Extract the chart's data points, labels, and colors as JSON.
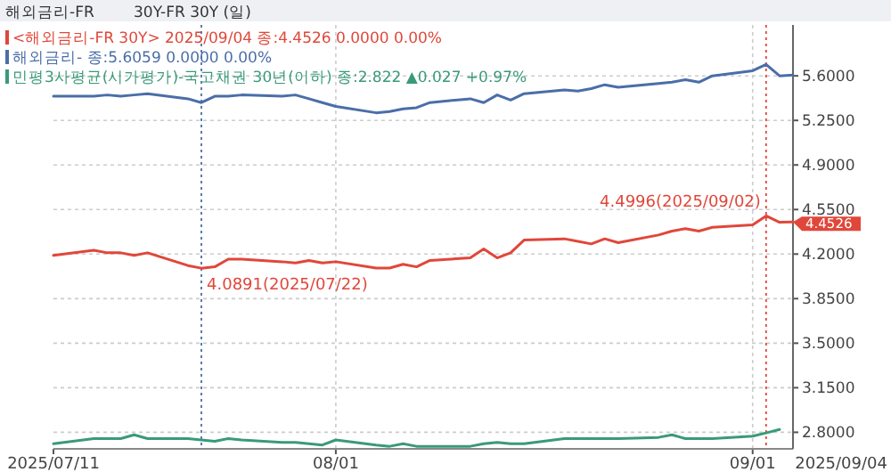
{
  "chart_data": {
    "type": "line",
    "title": "해외금리-FR",
    "subtitle": "30Y-FR 30Y (일)",
    "x": [
      "2025-07-11",
      "2025-07-14",
      "2025-07-15",
      "2025-07-16",
      "2025-07-17",
      "2025-07-18",
      "2025-07-21",
      "2025-07-22",
      "2025-07-23",
      "2025-07-24",
      "2025-07-25",
      "2025-07-28",
      "2025-07-29",
      "2025-07-30",
      "2025-07-31",
      "2025-08-01",
      "2025-08-04",
      "2025-08-05",
      "2025-08-06",
      "2025-08-07",
      "2025-08-08",
      "2025-08-11",
      "2025-08-12",
      "2025-08-13",
      "2025-08-14",
      "2025-08-15",
      "2025-08-18",
      "2025-08-19",
      "2025-08-20",
      "2025-08-21",
      "2025-08-22",
      "2025-08-25",
      "2025-08-26",
      "2025-08-27",
      "2025-08-28",
      "2025-08-29",
      "2025-09-01",
      "2025-09-02",
      "2025-09-03",
      "2025-09-04"
    ],
    "xlim": [
      "2025-07-11",
      "2025-09-04"
    ],
    "xticks": [
      {
        "value": "2025-07-11",
        "label": "2025/07/11"
      },
      {
        "value": "2025-08-01",
        "label": "08/01"
      },
      {
        "value": "2025-09-01",
        "label": "09/01"
      }
    ],
    "ylim": [
      2.67,
      6.0
    ],
    "yticks": [
      {
        "value": 2.8,
        "label": "2.8000"
      },
      {
        "value": 3.15,
        "label": "3.1500"
      },
      {
        "value": 3.5,
        "label": "3.5000"
      },
      {
        "value": 3.85,
        "label": "3.8500"
      },
      {
        "value": 4.2,
        "label": "4.2000"
      },
      {
        "value": 4.55,
        "label": "4.5500"
      },
      {
        "value": 4.9,
        "label": "4.9000"
      },
      {
        "value": 5.25,
        "label": "5.2500"
      },
      {
        "value": 5.6,
        "label": "5.6000"
      }
    ],
    "grid": true,
    "legend": "top left",
    "ref_lines": [
      {
        "axis": "x",
        "value": "2025-07-22",
        "color": "#4a6ea8",
        "line_style": "dotted"
      },
      {
        "axis": "x",
        "value": "2025-09-02",
        "color": "#e0473a",
        "line_style": "dotted"
      }
    ],
    "series": [
      {
        "name": "<해외금리-FR 30Y> 2025/09/04 종:4.4526  0.0000 0.00%",
        "color": "#e0473a",
        "values": [
          4.19,
          4.23,
          4.21,
          4.21,
          4.19,
          4.21,
          4.11,
          4.0891,
          4.1,
          4.16,
          4.16,
          4.14,
          4.13,
          4.15,
          4.13,
          4.14,
          4.09,
          4.09,
          4.12,
          4.1,
          4.15,
          4.17,
          4.24,
          4.17,
          4.21,
          4.31,
          4.32,
          4.3,
          4.28,
          4.32,
          4.29,
          4.35,
          4.38,
          4.4,
          4.38,
          4.41,
          4.43,
          4.4996,
          4.45,
          4.4526
        ],
        "value_labels": [
          null,
          null,
          null,
          null,
          null,
          null,
          null,
          null,
          null,
          null,
          null,
          null,
          null,
          null,
          null,
          null,
          null,
          null,
          null,
          null,
          null,
          null,
          null,
          null,
          null,
          null,
          null,
          null,
          null,
          null,
          null,
          null,
          null,
          null,
          null,
          null,
          null,
          null,
          null,
          "4.4526"
        ]
      },
      {
        "name": "해외금리- 종:5.6059 0.0000 0.00%",
        "color": "#4a6ea8",
        "values": [
          5.44,
          5.44,
          5.45,
          5.44,
          5.45,
          5.46,
          5.42,
          5.39,
          5.44,
          5.44,
          5.45,
          5.44,
          5.45,
          5.42,
          5.39,
          5.36,
          5.31,
          5.32,
          5.34,
          5.35,
          5.39,
          5.42,
          5.39,
          5.45,
          5.41,
          5.46,
          5.49,
          5.48,
          5.5,
          5.53,
          5.51,
          5.54,
          5.55,
          5.57,
          5.55,
          5.6,
          5.64,
          5.69,
          5.6,
          5.6059
        ]
      },
      {
        "name": "민평3사평균(시가평가)-국고채권 30년(이하) 종:2.822 ▲0.027 +0.97%",
        "color": "#3a9a78",
        "values": [
          2.71,
          2.75,
          2.75,
          2.75,
          2.78,
          2.75,
          2.75,
          2.74,
          2.73,
          2.75,
          2.74,
          2.72,
          2.72,
          2.71,
          2.7,
          2.74,
          2.7,
          2.69,
          2.71,
          2.69,
          2.69,
          2.69,
          2.71,
          2.72,
          2.71,
          2.71,
          2.75,
          2.75,
          2.75,
          2.75,
          2.75,
          2.76,
          2.78,
          2.75,
          2.75,
          2.75,
          2.77,
          2.795,
          2.822,
          null
        ]
      }
    ],
    "annotations": [
      {
        "text": "4.4996(2025/09/02)",
        "x": "2025-09-02",
        "y": 4.4996
      },
      {
        "text": "4.0891(2025/07/22)",
        "x": "2025-07-22",
        "y": 4.0891
      },
      "2025/09/04"
    ]
  }
}
